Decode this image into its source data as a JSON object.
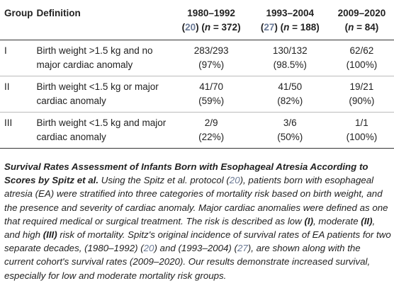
{
  "table": {
    "headers": [
      {
        "lines": [
          [
            {
              "text": "Group",
              "style": "plain"
            }
          ]
        ]
      },
      {
        "lines": [
          [
            {
              "text": "Definition",
              "style": "plain"
            }
          ]
        ]
      },
      {
        "lines": [
          [
            {
              "text": "1980–1992",
              "style": "plain"
            }
          ],
          [
            {
              "text": "(",
              "style": "plain"
            },
            {
              "text": "20",
              "style": "ref"
            },
            {
              "text": ") (",
              "style": "plain"
            },
            {
              "text": "n",
              "style": "italic"
            },
            {
              "text": " = 372)",
              "style": "plain"
            }
          ]
        ]
      },
      {
        "lines": [
          [
            {
              "text": "1993–2004",
              "style": "plain"
            }
          ],
          [
            {
              "text": "(",
              "style": "plain"
            },
            {
              "text": "27",
              "style": "ref"
            },
            {
              "text": ") (",
              "style": "plain"
            },
            {
              "text": "n",
              "style": "italic"
            },
            {
              "text": " = 188)",
              "style": "plain"
            }
          ]
        ]
      },
      {
        "lines": [
          [
            {
              "text": "2009–2020",
              "style": "plain"
            }
          ],
          [
            {
              "text": "(",
              "style": "plain"
            },
            {
              "text": "n",
              "style": "italic"
            },
            {
              "text": " = 84)",
              "style": "plain"
            }
          ]
        ]
      }
    ],
    "rows": [
      {
        "group": "I",
        "definition": "Birth weight >1.5 kg and no major cardiac anomaly",
        "cells": [
          [
            "283/293",
            "(97%)"
          ],
          [
            "130/132",
            "(98.5%)"
          ],
          [
            "62/62",
            "(100%)"
          ]
        ]
      },
      {
        "group": "II",
        "definition": "Birth weight <1.5 kg or major cardiac anomaly",
        "cells": [
          [
            "41/70",
            "(59%)"
          ],
          [
            "41/50",
            "(82%)"
          ],
          [
            "19/21",
            "(90%)"
          ]
        ]
      },
      {
        "group": "III",
        "definition": "Birth weight <1.5 kg and major cardiac anomaly",
        "cells": [
          [
            "2/9",
            "(22%)"
          ],
          [
            "3/6",
            "(50%)"
          ],
          [
            "1/1",
            "(100%)"
          ]
        ]
      }
    ]
  },
  "caption": [
    {
      "text": "Survival Rates Assessment of Infants Born with Esophageal Atresia According to Scores by Spitz et al.",
      "style": "bold"
    },
    {
      "text": " Using the Spitz et al. protocol (",
      "style": "plain"
    },
    {
      "text": "20",
      "style": "ref"
    },
    {
      "text": "), patients born with esophageal atresia (EA) were stratified into three categories of mortality risk based on birth weight, and the presence and severity of cardiac anomaly. Major cardiac anomalies were defined as one that required medical or surgical treatment. The risk is described as low ",
      "style": "plain"
    },
    {
      "text": "(I)",
      "style": "bold"
    },
    {
      "text": ", moderate ",
      "style": "plain"
    },
    {
      "text": "(II)",
      "style": "bold"
    },
    {
      "text": ", and high ",
      "style": "plain"
    },
    {
      "text": "(III)",
      "style": "bold"
    },
    {
      "text": " risk of mortality. Spitz's original incidence of survival rates of EA patients for two separate decades, (1980–1992) (",
      "style": "plain"
    },
    {
      "text": "20",
      "style": "ref"
    },
    {
      "text": ") and (1993–2004) (",
      "style": "plain"
    },
    {
      "text": "27",
      "style": "ref"
    },
    {
      "text": "), are shown along with the current cohort's survival rates (2009–2020). Our results demonstrate increased survival, especially for low and moderate mortality risk groups.",
      "style": "plain"
    }
  ]
}
